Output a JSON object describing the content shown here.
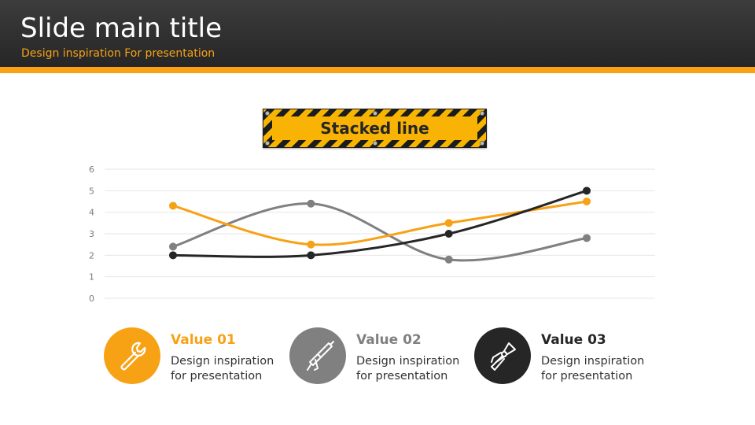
{
  "header": {
    "title": "Slide main title",
    "subtitle": "Design inspiration For presentation"
  },
  "sign": {
    "label": "Stacked line"
  },
  "colors": {
    "accent": "#f7a215",
    "gray": "#808080",
    "dark": "#262626"
  },
  "chart_data": {
    "type": "line",
    "title": "Stacked line",
    "categories": [
      "",
      "",
      "",
      ""
    ],
    "ylim": [
      0,
      6
    ],
    "yticks": [
      0,
      1,
      2,
      3,
      4,
      5,
      6
    ],
    "grid": true,
    "smooth": true,
    "series": [
      {
        "name": "Value 01",
        "color": "#f7a215",
        "values": [
          4.3,
          2.5,
          3.5,
          4.5
        ]
      },
      {
        "name": "Value 02",
        "color": "#808080",
        "values": [
          2.4,
          4.4,
          1.8,
          2.8
        ]
      },
      {
        "name": "Value 03",
        "color": "#262626",
        "values": [
          2.0,
          2.0,
          3.0,
          5.0
        ]
      }
    ]
  },
  "legend": [
    {
      "title": "Value 01",
      "line1": "Design inspiration",
      "line2": "for presentation",
      "icon": "wrench-icon",
      "color": "#f7a215"
    },
    {
      "title": "Value 02",
      "line1": "Design inspiration",
      "line2": "for presentation",
      "icon": "caulking-gun-icon",
      "color": "#808080"
    },
    {
      "title": "Value 03",
      "line1": "Design inspiration",
      "line2": "for presentation",
      "icon": "pliers-icon",
      "color": "#262626"
    }
  ]
}
